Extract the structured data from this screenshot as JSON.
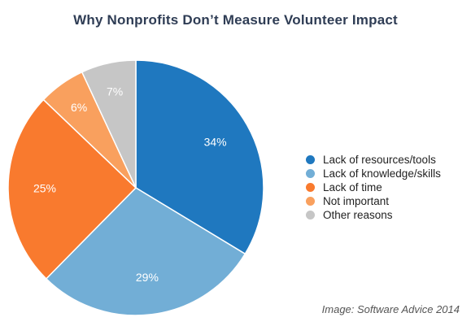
{
  "chart_data": {
    "type": "pie",
    "title": "Why Nonprofits Don’t Measure Volunteer Impact",
    "slices": [
      {
        "name": "Lack of resources/tools",
        "value": 34,
        "label": "34%",
        "color": "#1f78bf"
      },
      {
        "name": "Lack of knowledge/skills",
        "value": 29,
        "label": "29%",
        "color": "#72aed6"
      },
      {
        "name": "Lack of time",
        "value": 25,
        "label": "25%",
        "color": "#f97a2e"
      },
      {
        "name": "Not important",
        "value": 6,
        "label": "6%",
        "color": "#f9a05e"
      },
      {
        "name": "Other reasons",
        "value": 7,
        "label": "7%",
        "color": "#c6c6c6"
      }
    ],
    "start": "12 o'clock",
    "direction": "clockwise",
    "legend_position": "right"
  },
  "credit": "Image: Software Advice 2014"
}
